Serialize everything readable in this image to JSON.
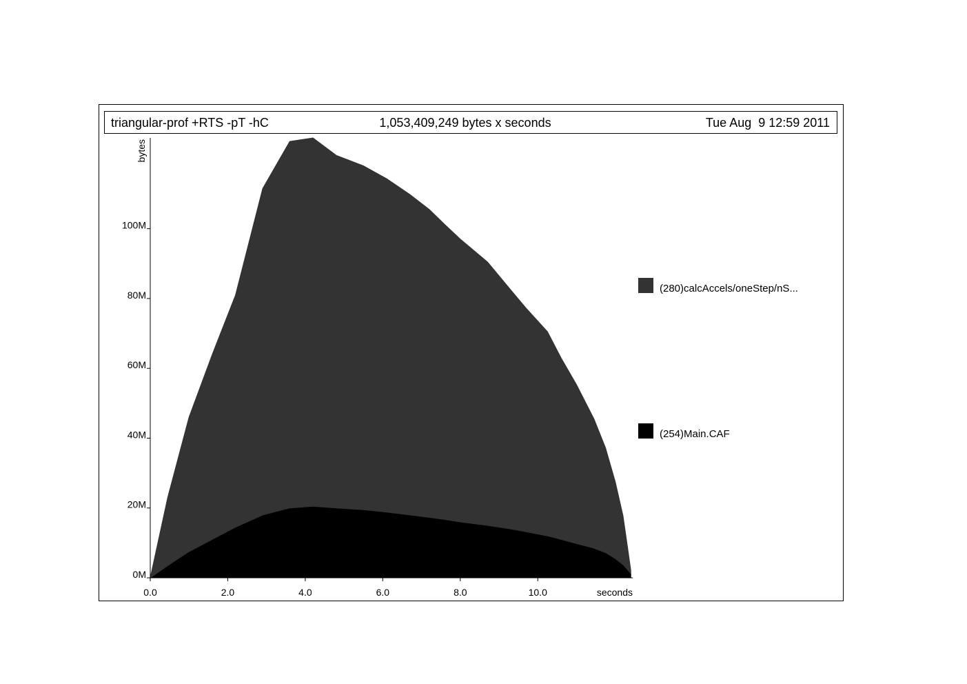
{
  "header": {
    "program": "triangular-prof +RTS -pT -hC",
    "total": "1,053,409,249 bytes x seconds",
    "date": "Tue Aug  9 12:59 2011"
  },
  "chart_data": {
    "type": "area",
    "stacked": true,
    "title": "",
    "xlabel": "seconds",
    "ylabel": "bytes",
    "xlim": [
      0,
      12.45
    ],
    "ylim": [
      0,
      126
    ],
    "x_ticks": [
      0,
      2,
      4,
      6,
      8,
      10
    ],
    "x_tick_labels": [
      "0.0",
      "2.0",
      "4.0",
      "6.0",
      "8.0",
      "10.0"
    ],
    "y_ticks": [
      0,
      20,
      40,
      60,
      80,
      100
    ],
    "y_tick_labels": [
      "0M",
      "20M",
      "40M",
      "60M",
      "80M",
      "100M"
    ],
    "y_unit": "M bytes",
    "legend_position": "right",
    "grid": false,
    "x": [
      0,
      0.45,
      1.0,
      1.6,
      2.2,
      2.9,
      3.6,
      4.2,
      4.8,
      5.5,
      6.1,
      6.7,
      7.2,
      7.6,
      8.0,
      8.7,
      9.3,
      9.7,
      10.25,
      10.6,
      11.0,
      11.45,
      11.75,
      12.0,
      12.2,
      12.3,
      12.4
    ],
    "series": [
      {
        "name": "(254)Main.CAF",
        "color": "#000000",
        "values": [
          0,
          3.5,
          7.5,
          11,
          14.5,
          18,
          20,
          20.5,
          20,
          19.5,
          18.8,
          18,
          17.3,
          16.7,
          16,
          15,
          14,
          13.2,
          12,
          11,
          9.8,
          8.5,
          7.2,
          5.5,
          3.8,
          2.5,
          1.2
        ]
      },
      {
        "name": "(280)calcAccels/oneStep/nS...",
        "color": "#333333",
        "values": [
          0,
          19.5,
          38.5,
          53,
          66.5,
          93.5,
          105,
          105.5,
          101,
          98.5,
          95.5,
          91.8,
          88.2,
          84.5,
          81,
          75.5,
          68.5,
          64,
          58.5,
          52,
          45.5,
          37,
          30,
          22,
          14,
          7.5,
          1
        ]
      }
    ]
  }
}
